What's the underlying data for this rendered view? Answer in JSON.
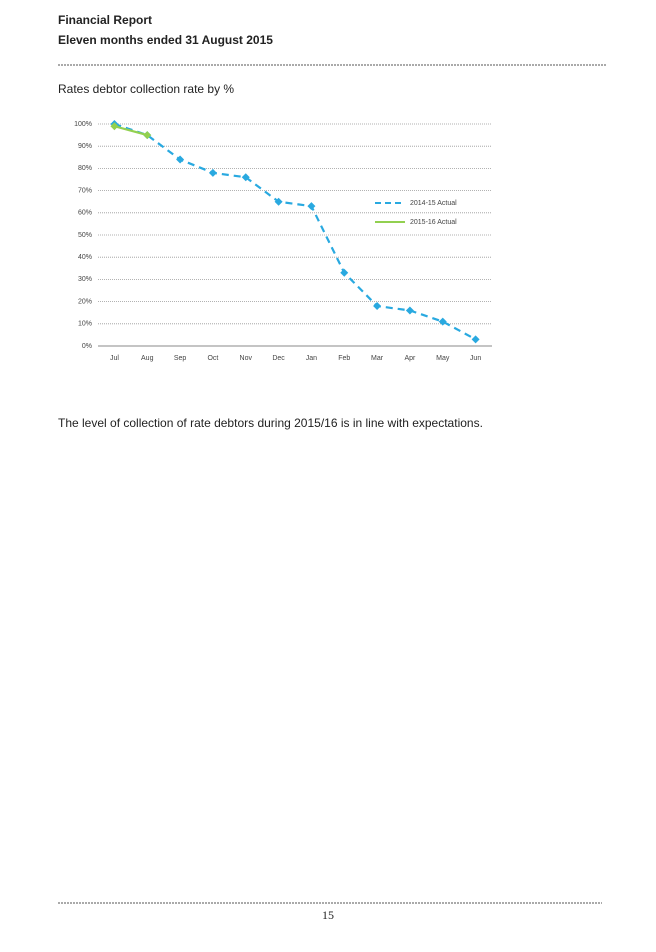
{
  "header": {
    "title": "Financial Report",
    "subtitle": "Eleven months ended 31 August 2015"
  },
  "section_title": "Rates debtor collection rate by %",
  "chart_data": {
    "type": "line",
    "categories": [
      "Jul",
      "Aug",
      "Sep",
      "Oct",
      "Nov",
      "Dec",
      "Jan",
      "Feb",
      "Mar",
      "Apr",
      "May",
      "Jun"
    ],
    "series": [
      {
        "name": "2014-15 Actual",
        "color": "#29a9e0",
        "dashed": true,
        "values": [
          100,
          95,
          84,
          78,
          76,
          65,
          63,
          33,
          18,
          16,
          11,
          3
        ]
      },
      {
        "name": "2015-16 Actual",
        "color": "#92d050",
        "dashed": false,
        "values": [
          99,
          95,
          null,
          null,
          null,
          null,
          null,
          null,
          null,
          null,
          null,
          null
        ]
      }
    ],
    "ylim": [
      0,
      100
    ],
    "yticks": [
      {
        "value": 0,
        "label": "0%"
      },
      {
        "value": 10,
        "label": "10%"
      },
      {
        "value": 20,
        "label": "20%"
      },
      {
        "value": 30,
        "label": "30%"
      },
      {
        "value": 40,
        "label": "40%"
      },
      {
        "value": 50,
        "label": "50%"
      },
      {
        "value": 60,
        "label": "60%"
      },
      {
        "value": 70,
        "label": "70%"
      },
      {
        "value": 80,
        "label": "80%"
      },
      {
        "value": 90,
        "label": "90%"
      },
      {
        "value": 100,
        "label": "100%"
      }
    ],
    "grid": true,
    "legend": "right"
  },
  "body": "The level of collection of rate debtors during 2015/16 is in line with expectations.",
  "page_number": "15"
}
